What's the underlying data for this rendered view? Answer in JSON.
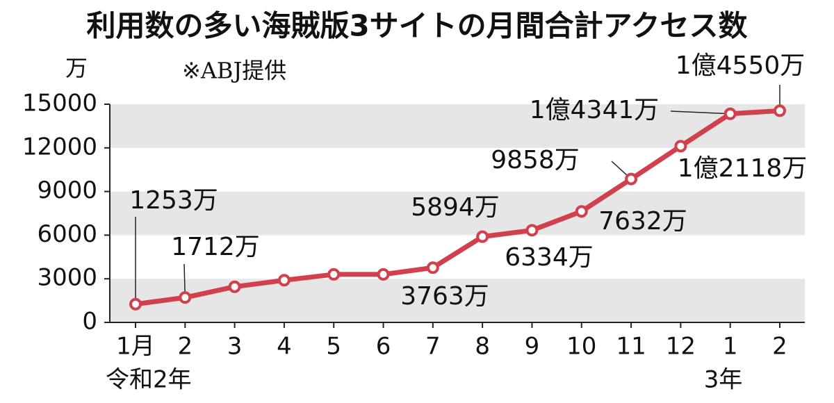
{
  "chart_data": {
    "type": "line",
    "title": "利用数の多い海賊版3サイトの月間合計アクセス数",
    "y_unit": "万",
    "annotation": "※ABJ提供",
    "categories": [
      "1月",
      "2",
      "3",
      "4",
      "5",
      "6",
      "7",
      "8",
      "9",
      "10",
      "11",
      "12",
      "1",
      "2"
    ],
    "subcategories": [
      "令和2年",
      null,
      null,
      null,
      null,
      null,
      null,
      null,
      null,
      null,
      null,
      null,
      "3年",
      null
    ],
    "series": [
      {
        "name": "月間合計アクセス数",
        "color": "#d1404c",
        "values": [
          1253,
          1712,
          2450,
          2900,
          3300,
          3300,
          3763,
          5894,
          6334,
          7632,
          9858,
          12118,
          14341,
          14550
        ],
        "value_labels": [
          "1253万",
          "1712万",
          null,
          null,
          null,
          null,
          "3763万",
          "5894万",
          "6334万",
          "7632万",
          "9858万",
          "1億2118万",
          "1億4341万",
          "1億4550万"
        ]
      }
    ],
    "ylim": [
      0,
      15000
    ],
    "yticks": [
      0,
      3000,
      6000,
      9000,
      12000,
      15000
    ],
    "grid": true
  }
}
